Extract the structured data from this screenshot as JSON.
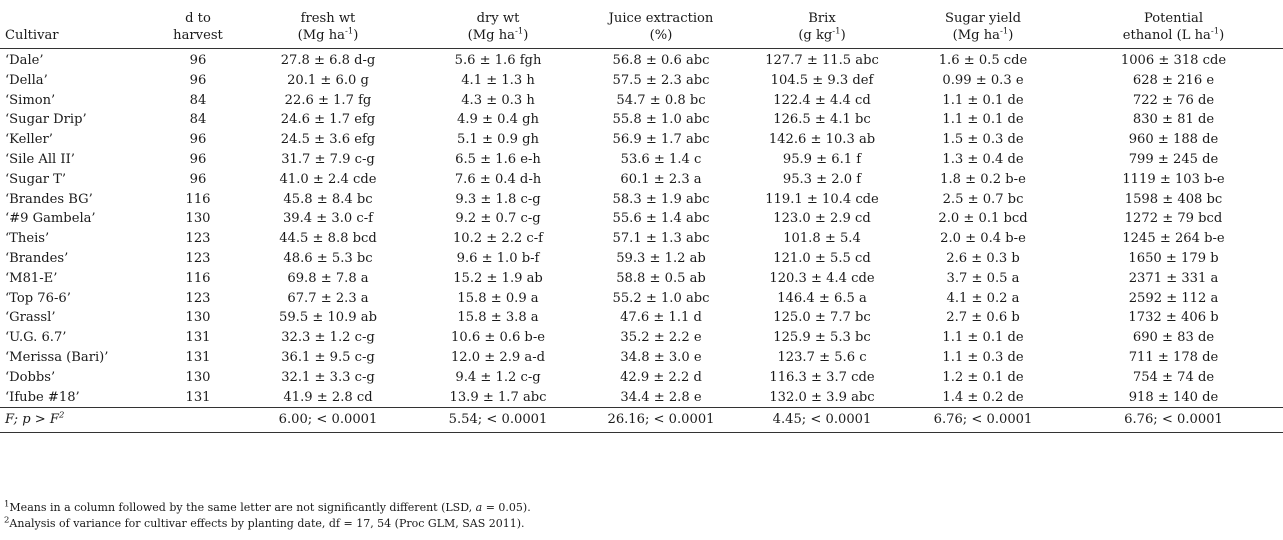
{
  "headers": [
    {
      "line1": "",
      "line2": "Cultivar",
      "sup": ""
    },
    {
      "line1": "d to",
      "line2": "harvest",
      "sup": ""
    },
    {
      "line1": "fresh wt",
      "line2": "(Mg ha",
      "sup": "-1",
      "close": ")"
    },
    {
      "line1": "dry wt",
      "line2": "(Mg ha",
      "sup": "-1",
      "close": ")"
    },
    {
      "line1": "Juice extraction",
      "line2": "(%)",
      "sup": ""
    },
    {
      "line1": "Brix",
      "line2": "(g kg",
      "sup": "-1",
      "close": ")"
    },
    {
      "line1": "Sugar yield",
      "line2": "(Mg ha",
      "sup": "-1",
      "close": ")"
    },
    {
      "line1": "Potential",
      "line2": "ethanol (L ha",
      "sup": "-1",
      "close": ")"
    }
  ],
  "rows": [
    [
      "‘Dale’",
      "96",
      "27.8 ± 6.8 d-g",
      "5.6 ± 1.6 fgh",
      "56.8 ± 0.6 abc",
      "127.7 ± 11.5 abc",
      "1.6 ± 0.5 cde",
      "1006 ± 318 cde"
    ],
    [
      "‘Della’",
      "96",
      "20.1 ± 6.0 g",
      "4.1 ± 1.3 h",
      "57.5 ± 2.3 abc",
      "104.5 ± 9.3 def",
      "0.99 ± 0.3 e",
      "628 ± 216 e"
    ],
    [
      "‘Simon’",
      "84",
      "22.6 ± 1.7 fg",
      "4.3 ± 0.3 h",
      "54.7 ± 0.8 bc",
      "122.4 ± 4.4 cd",
      "1.1 ± 0.1 de",
      "722 ± 76 de"
    ],
    [
      "‘Sugar Drip’",
      "84",
      "24.6 ± 1.7 efg",
      "4.9 ± 0.4 gh",
      "55.8 ± 1.0 abc",
      "126.5 ± 4.1 bc",
      "1.1 ± 0.1 de",
      "830 ± 81 de"
    ],
    [
      "‘Keller’",
      "96",
      "24.5 ± 3.6 efg",
      "5.1 ± 0.9 gh",
      "56.9 ± 1.7 abc",
      "142.6 ± 10.3 ab",
      "1.5 ± 0.3 de",
      "960 ± 188 de"
    ],
    [
      "‘Sile All II’",
      "96",
      "31.7 ± 7.9 c-g",
      "6.5 ± 1.6 e-h",
      "53.6 ± 1.4 c",
      "95.9 ± 6.1 f",
      "1.3 ± 0.4 de",
      "799 ± 245 de"
    ],
    [
      "‘Sugar T’",
      "96",
      "41.0 ± 2.4 cde",
      "7.6 ± 0.4 d-h",
      "60.1 ± 2.3 a",
      "95.3 ± 2.0 f",
      "1.8 ± 0.2 b-e",
      "1119 ± 103 b-e"
    ],
    [
      "‘Brandes BG’",
      "116",
      "45.8 ± 8.4 bc",
      "9.3 ± 1.8 c-g",
      "58.3 ± 1.9 abc",
      "119.1 ± 10.4 cde",
      "2.5 ± 0.7 bc",
      "1598 ± 408 bc"
    ],
    [
      "‘#9 Gambela’",
      "130",
      "39.4 ± 3.0 c-f",
      "9.2 ± 0.7 c-g",
      "55.6 ± 1.4 abc",
      "123.0 ± 2.9 cd",
      "2.0 ± 0.1 bcd",
      "1272 ± 79 bcd"
    ],
    [
      "‘Theis’",
      "123",
      "44.5 ± 8.8 bcd",
      "10.2 ± 2.2 c-f",
      "57.1 ± 1.3 abc",
      "101.8 ± 5.4",
      "2.0 ± 0.4 b-e",
      "1245 ± 264 b-e"
    ],
    [
      "‘Brandes’",
      "123",
      "48.6 ± 5.3 bc",
      "9.6 ± 1.0 b-f",
      "59.3 ± 1.2 ab",
      "121.0 ± 5.5 cd",
      "2.6 ± 0.3 b",
      "1650 ± 179 b"
    ],
    [
      "‘M81-E’",
      "116",
      "69.8 ± 7.8 a",
      "15.2 ± 1.9 ab",
      "58.8 ± 0.5 ab",
      "120.3 ± 4.4 cde",
      "3.7 ± 0.5 a",
      "2371 ± 331 a"
    ],
    [
      "‘Top 76-6’",
      "123",
      "67.7 ± 2.3 a",
      "15.8 ± 0.9 a",
      "55.2 ± 1.0 abc",
      "146.4 ± 6.5 a",
      "4.1 ± 0.2 a",
      "2592 ± 112 a"
    ],
    [
      "‘Grassl’",
      "130",
      "59.5 ± 10.9 ab",
      "15.8 ± 3.8 a",
      "47.6 ± 1.1 d",
      "125.0 ± 7.7 bc",
      "2.7 ± 0.6 b",
      "1732 ± 406 b"
    ],
    [
      "‘U.G. 6.7’",
      "131",
      "32.3 ± 1.2 c-g",
      "10.6 ± 0.6 b-e",
      "35.2 ± 2.2 e",
      "125.9 ± 5.3 bc",
      "1.1 ± 0.1 de",
      "690 ± 83 de"
    ],
    [
      "‘Merissa (Bari)’",
      "131",
      "36.1 ± 9.5 c-g",
      "12.0 ± 2.9 a-d",
      "34.8 ± 3.0 e",
      "123.7 ± 5.6 c",
      "1.1 ± 0.3 de",
      "711 ± 178 de"
    ],
    [
      "‘Dobbs’",
      "130",
      "32.1 ± 3.3 c-g",
      "9.4 ± 1.2 c-g",
      "42.9 ± 2.2 d",
      "116.3 ± 3.7 cde",
      "1.2 ± 0.1 de",
      "754 ± 74 de"
    ],
    [
      "‘Ifube #18’",
      "131",
      "41.9 ± 2.8 cd",
      "13.9 ± 1.7 abc",
      "34.4 ± 2.8 e",
      "132.0 ± 3.9 abc",
      "1.4 ± 0.2 de",
      "918 ± 140 de"
    ]
  ],
  "ftest": {
    "label": "F; p > F",
    "label_sup": "2",
    "values": [
      "6.00; < 0.0001",
      "5.54; < 0.0001",
      "26.16; < 0.0001",
      "4.45; < 0.0001",
      "6.76; < 0.0001",
      "6.76; < 0.0001"
    ]
  },
  "footnotes": {
    "note1_sup": "1",
    "note1_pre": "Means in a column followed by the same letter are not significantly different (LSD, ",
    "note1_alpha": "a",
    "note1_post": " = 0.05).",
    "note2_sup": "2",
    "note2_text": "Analysis of variance for cultivar effects by planting date, df = 17, 54 (Proc GLM, SAS 2011)."
  }
}
